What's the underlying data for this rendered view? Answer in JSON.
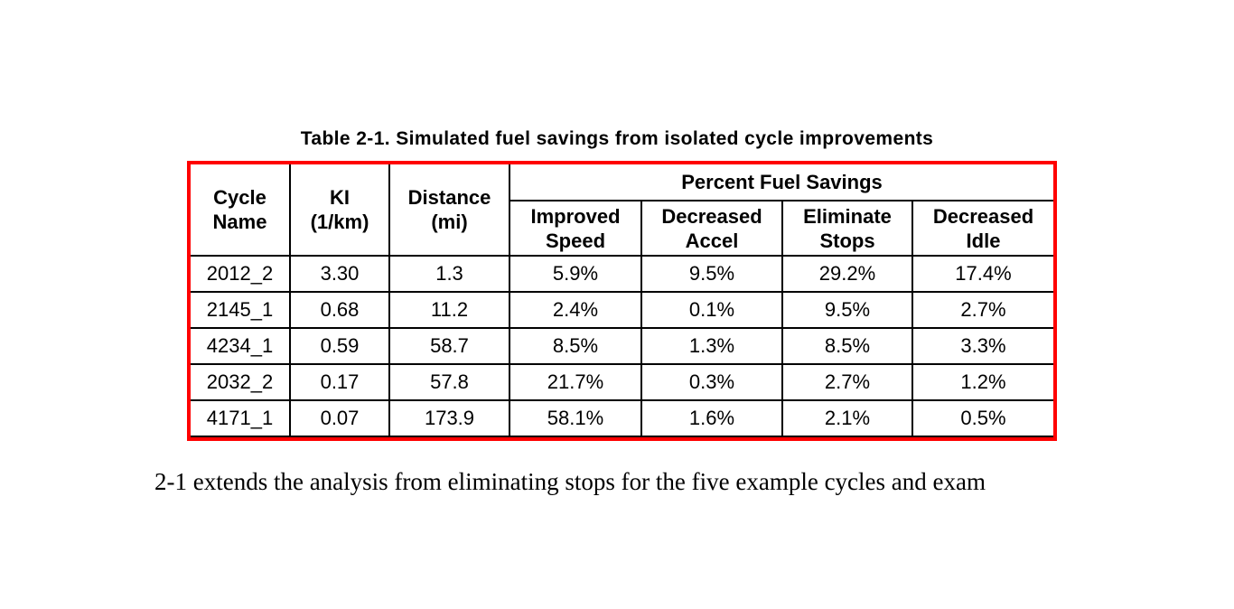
{
  "document": {
    "title": "Table 2-1. Simulated fuel savings from isolated cycle improvements",
    "following_text": "2-1 extends the analysis from eliminating stops for the five example cycles and exam"
  },
  "table": {
    "border_color": "#ff0000",
    "row_headers": [
      {
        "line1": "Cycle",
        "line2": "Name"
      },
      {
        "line1": "KI",
        "line2": "(1/km)"
      },
      {
        "line1": "Distance",
        "line2": "(mi)"
      }
    ],
    "group_header": "Percent Fuel Savings",
    "sub_headers": [
      {
        "line1": "Improved",
        "line2": "Speed"
      },
      {
        "line1": "Decreased",
        "line2": "Accel"
      },
      {
        "line1": "Eliminate",
        "line2": "Stops"
      },
      {
        "line1": "Decreased",
        "line2": "Idle"
      }
    ],
    "column_keys": [
      "cycle_name",
      "ki",
      "distance",
      "improved_speed",
      "decreased_accel",
      "eliminate_stops",
      "decreased_idle"
    ],
    "rows": [
      {
        "cycle_name": "2012_2",
        "ki": "3.30",
        "distance": "1.3",
        "improved_speed": "5.9%",
        "decreased_accel": "9.5%",
        "eliminate_stops": "29.2%",
        "decreased_idle": "17.4%"
      },
      {
        "cycle_name": "2145_1",
        "ki": "0.68",
        "distance": "11.2",
        "improved_speed": "2.4%",
        "decreased_accel": "0.1%",
        "eliminate_stops": "9.5%",
        "decreased_idle": "2.7%"
      },
      {
        "cycle_name": "4234_1",
        "ki": "0.59",
        "distance": "58.7",
        "improved_speed": "8.5%",
        "decreased_accel": "1.3%",
        "eliminate_stops": "8.5%",
        "decreased_idle": "3.3%"
      },
      {
        "cycle_name": "2032_2",
        "ki": "0.17",
        "distance": "57.8",
        "improved_speed": "21.7%",
        "decreased_accel": "0.3%",
        "eliminate_stops": "2.7%",
        "decreased_idle": "1.2%"
      },
      {
        "cycle_name": "4171_1",
        "ki": "0.07",
        "distance": "173.9",
        "improved_speed": "58.1%",
        "decreased_accel": "1.6%",
        "eliminate_stops": "2.1%",
        "decreased_idle": "0.5%"
      }
    ]
  }
}
